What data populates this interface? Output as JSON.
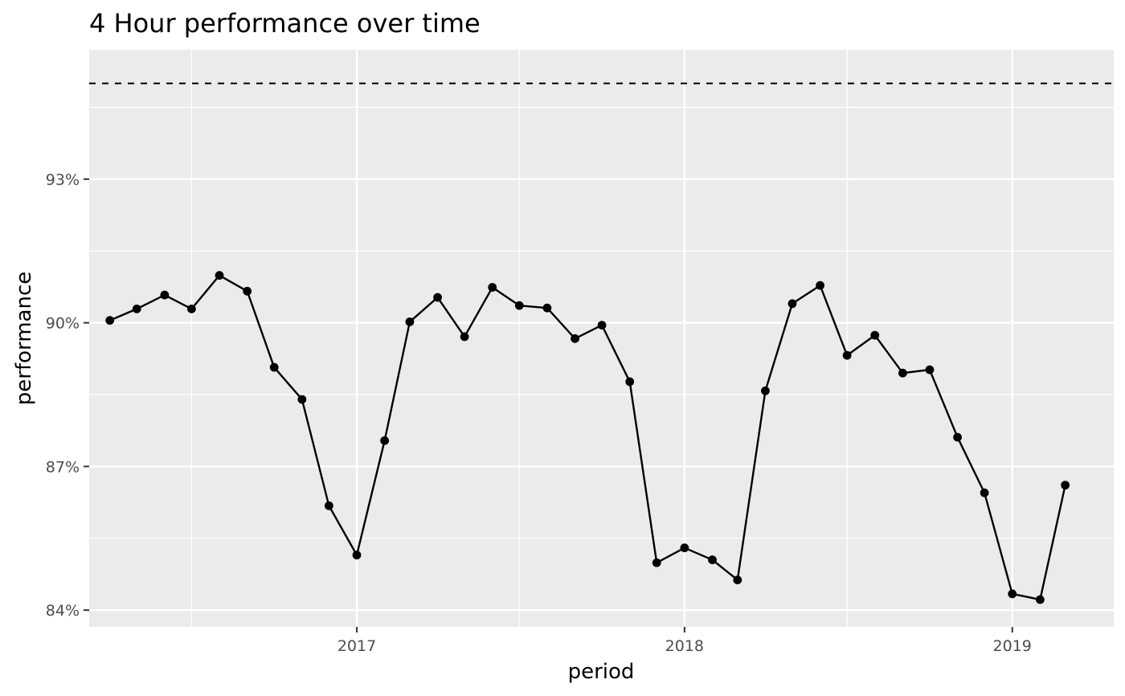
{
  "chart_data": {
    "type": "line",
    "title": "4 Hour performance over time",
    "xlabel": "period",
    "ylabel": "performance",
    "x_tick_labels": [
      "2017",
      "2018",
      "2019"
    ],
    "x_ticks": [
      "2017-01-01",
      "2018-01-01",
      "2019-01-01"
    ],
    "x_minor_ticks": [
      "2016-07-01",
      "2017-07-01",
      "2018-07-01"
    ],
    "xlim": [
      "2016-03-09",
      "2019-04-24"
    ],
    "y_tick_labels": [
      "84%",
      "87%",
      "90%",
      "93%"
    ],
    "y_ticks": [
      0.84,
      0.87,
      0.9,
      0.93
    ],
    "ylim": [
      0.8365,
      0.957
    ],
    "target_line": 0.95,
    "grid": true,
    "legend": "none",
    "colors": {
      "panel": "#ebebeb",
      "grid": "#ffffff",
      "line": "#000000",
      "axis_text": "#4d4d4d"
    },
    "series": [
      {
        "x": [
          "2016-04-01",
          "2016-05-01",
          "2016-06-01",
          "2016-07-01",
          "2016-08-01",
          "2016-09-01",
          "2016-10-01",
          "2016-11-01",
          "2016-12-01",
          "2017-01-01",
          "2017-02-01",
          "2017-03-01",
          "2017-04-01",
          "2017-05-01",
          "2017-06-01",
          "2017-07-01",
          "2017-08-01",
          "2017-09-01",
          "2017-10-01",
          "2017-11-01",
          "2017-12-01",
          "2018-01-01",
          "2018-02-01",
          "2018-03-01",
          "2018-04-01",
          "2018-05-01",
          "2018-06-01",
          "2018-07-01",
          "2018-08-01",
          "2018-09-01",
          "2018-10-01",
          "2018-11-01",
          "2018-12-01",
          "2019-01-01",
          "2019-02-01",
          "2019-03-01"
        ],
        "values": [
          0.9005,
          0.9029,
          0.9058,
          0.9029,
          0.9099,
          0.9066,
          0.8907,
          0.884,
          0.8618,
          0.8515,
          0.8754,
          0.9002,
          0.9053,
          0.8971,
          0.9074,
          0.9036,
          0.9031,
          0.8967,
          0.8995,
          0.8877,
          0.8499,
          0.853,
          0.8505,
          0.8463,
          0.8858,
          0.904,
          0.9078,
          0.8932,
          0.8974,
          0.8895,
          0.8902,
          0.8761,
          0.8645,
          0.8434,
          0.8422,
          0.8661
        ]
      }
    ]
  }
}
